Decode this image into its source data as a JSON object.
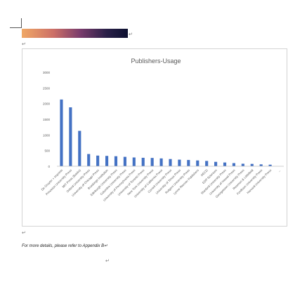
{
  "document": {
    "footnote": "For more details, please refer to Appendix B",
    "paragraph_mark": "↵",
    "header_gradient_colors": [
      "#f0a866",
      "#cc6f67",
      "#7a3c6c",
      "#2a2048",
      "#0c1030"
    ]
  },
  "chart_data": {
    "type": "bar",
    "title": "Publishers-Usage",
    "xlabel": "",
    "ylabel": "",
    "ylim": [
      0,
      3000
    ],
    "grid": false,
    "legend": "none",
    "bar_color": "#4472c4",
    "yticks": [
      0,
      500,
      1000,
      1500,
      2000,
      2500,
      3000
    ],
    "ytick_labels": [
      "0",
      "500",
      "1000",
      "1500",
      "2000",
      "2500",
      "3000"
    ],
    "categories": [
      "De Gruyter + Imprints",
      "Princeton University Press",
      "MIT Press (Books)",
      "Oxford University Press",
      "University of Chicago Press",
      "Brookings Institution",
      "Edinburgh University Press",
      "Columbia University Press",
      "University of Pennsylvania Press",
      "University of Toronto Press",
      "New York University Press",
      "University of California Press",
      "Cornell University Press",
      "University of Texas Press",
      "Rutgers University Press",
      "Lynne Rienner Publishers",
      "OECD",
      "EDP Sciences",
      "Stanford University Press",
      "University of Hawaii Press",
      "Georgetown University Press",
      "Rowman & Littlefield",
      "Fordham University Press",
      "Harvard University Press",
      "..."
    ],
    "values": [
      2130,
      1880,
      1130,
      390,
      340,
      330,
      320,
      300,
      280,
      270,
      265,
      250,
      230,
      210,
      200,
      185,
      170,
      140,
      120,
      100,
      80,
      75,
      60,
      50,
      0
    ]
  }
}
